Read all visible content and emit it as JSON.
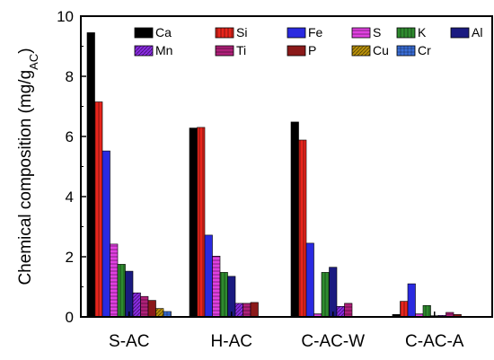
{
  "chart_data": {
    "type": "bar",
    "title": "",
    "ylabel": "Chemical composition (mg/g",
    "ylabel_sub": "AC",
    "ylabel_close": ")",
    "xlabel": "",
    "ylim": [
      0,
      10
    ],
    "yticks": [
      0,
      2,
      4,
      6,
      8,
      10
    ],
    "grid": false,
    "legend_position": "top",
    "categories": [
      "S-AC",
      "H-AC",
      "C-AC-W",
      "C-AC-A"
    ],
    "series": [
      {
        "name": "Ca",
        "color": "#000000",
        "pattern": "solid",
        "values": [
          9.45,
          6.28,
          6.48,
          0.08
        ]
      },
      {
        "name": "Si",
        "color": "#e8251c",
        "pattern": "vstripe",
        "values": [
          7.15,
          6.3,
          5.88,
          0.52
        ]
      },
      {
        "name": "Fe",
        "color": "#2a2ae0",
        "pattern": "solid",
        "values": [
          5.52,
          2.72,
          2.45,
          1.1
        ]
      },
      {
        "name": "S",
        "color": "#e040e0",
        "pattern": "hstripe",
        "values": [
          2.42,
          2.02,
          0.1,
          0.1
        ]
      },
      {
        "name": "K",
        "color": "#2e8b2e",
        "pattern": "vstripe",
        "values": [
          1.75,
          1.48,
          1.48,
          0.38
        ]
      },
      {
        "name": "Al",
        "color": "#1a1a80",
        "pattern": "solid",
        "values": [
          1.52,
          1.35,
          1.65,
          0.04
        ]
      },
      {
        "name": "Mn",
        "color": "#8a2be2",
        "pattern": "diag",
        "values": [
          0.8,
          0.45,
          0.35,
          0.05
        ]
      },
      {
        "name": "Ti",
        "color": "#b0207a",
        "pattern": "hstripe",
        "values": [
          0.68,
          0.45,
          0.45,
          0.15
        ]
      },
      {
        "name": "P",
        "color": "#8b1a1a",
        "pattern": "solid",
        "values": [
          0.55,
          0.48,
          0.0,
          0.08
        ]
      },
      {
        "name": "Cu",
        "color": "#b8900a",
        "pattern": "diag",
        "values": [
          0.28,
          0.0,
          0.0,
          0.0
        ]
      },
      {
        "name": "Cr",
        "color": "#3a6fd8",
        "pattern": "grid",
        "values": [
          0.18,
          0.0,
          0.0,
          0.0
        ]
      }
    ]
  }
}
